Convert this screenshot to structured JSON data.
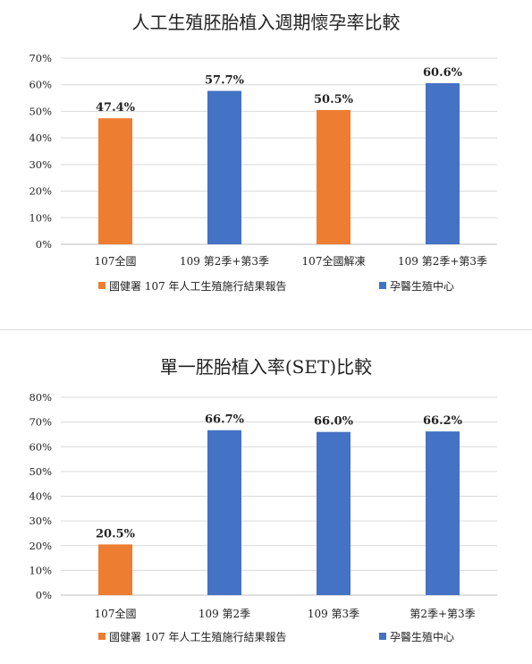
{
  "chart_data": [
    {
      "type": "bar",
      "title": "人工生殖胚胎植入週期懷孕率比較",
      "categories": [
        "107全國",
        "109 第2季+第3季",
        "107全國解凍",
        "109 第2季+第3季"
      ],
      "values": [
        47.4,
        57.7,
        50.5,
        60.6
      ],
      "value_labels": [
        "47.4%",
        "57.7%",
        "50.5%",
        "60.6%"
      ],
      "bar_series": [
        0,
        1,
        0,
        1
      ],
      "series": [
        {
          "name": "國健署 107 年人工生殖施行結果報告",
          "color": "#ed7d31"
        },
        {
          "name": "孕醫生殖中心",
          "color": "#4472c4"
        }
      ],
      "y_ticks": [
        "0%",
        "10%",
        "20%",
        "30%",
        "40%",
        "50%",
        "60%",
        "70%"
      ],
      "ylim": [
        0,
        70
      ],
      "grid": true,
      "legend_position": "bottom"
    },
    {
      "type": "bar",
      "title": "單一胚胎植入率(SET)比較",
      "categories": [
        "107全國",
        "109 第2季",
        "109 第3季",
        "第2季+第3季"
      ],
      "values": [
        20.5,
        66.7,
        66.0,
        66.2
      ],
      "value_labels": [
        "20.5%",
        "66.7%",
        "66.0%",
        "66.2%"
      ],
      "bar_series": [
        0,
        1,
        1,
        1
      ],
      "series": [
        {
          "name": "國健署 107 年人工生殖施行結果報告",
          "color": "#ed7d31"
        },
        {
          "name": "孕醫生殖中心",
          "color": "#4472c4"
        }
      ],
      "y_ticks": [
        "0%",
        "10%",
        "20%",
        "30%",
        "40%",
        "50%",
        "60%",
        "70%",
        "80%"
      ],
      "ylim": [
        0,
        80
      ],
      "grid": true,
      "legend_position": "bottom"
    }
  ]
}
